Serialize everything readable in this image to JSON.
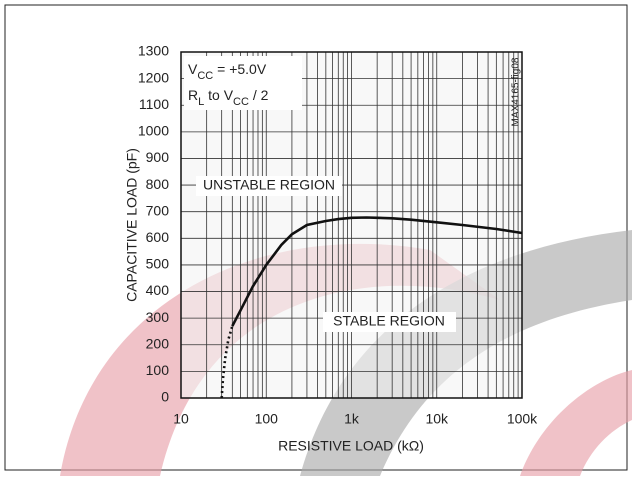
{
  "chart_data": {
    "type": "line",
    "xlabel": "RESISTIVE LOAD (kΩ)",
    "ylabel": "CAPACITIVE LOAD (pF)",
    "annotations": [
      [
        {
          "text": "V"
        },
        {
          "text": "CC",
          "sub": true
        },
        {
          "text": " = +5.0V"
        }
      ],
      [
        {
          "text": "R"
        },
        {
          "text": "L",
          "sub": true
        },
        {
          "text": " to V"
        },
        {
          "text": "CC",
          "sub": true
        },
        {
          "text": " / 2"
        }
      ]
    ],
    "region_labels": [
      "UNSTABLE REGION",
      "STABLE REGION"
    ],
    "figure_id": "MAX4165-fig08",
    "xscale": "log",
    "xlim": [
      10,
      100000
    ],
    "xticks": [
      10,
      100,
      {
        "value": 1000,
        "label": "1k"
      },
      {
        "value": 10000,
        "label": "10k"
      },
      {
        "value": 100000,
        "label": "100k"
      }
    ],
    "xminorticks": [
      20,
      30,
      40,
      50,
      60,
      70,
      80,
      90,
      200,
      300,
      400,
      500,
      600,
      700,
      800,
      900,
      2000,
      3000,
      4000,
      5000,
      6000,
      7000,
      8000,
      9000,
      20000,
      30000,
      40000,
      50000,
      60000,
      70000,
      80000,
      90000
    ],
    "ylim": [
      0,
      1300
    ],
    "yticks": [
      0,
      100,
      200,
      300,
      400,
      500,
      600,
      700,
      800,
      900,
      1000,
      1100,
      1200,
      1300
    ],
    "grid": true,
    "series": [
      {
        "color": "#111",
        "style": "solid",
        "x": [
          40,
          50,
          70,
          100,
          150,
          200,
          300,
          500,
          700,
          1000,
          1500,
          2000,
          3000,
          5000,
          10000,
          20000,
          50000,
          100000
        ],
        "values": [
          270,
          330,
          420,
          500,
          575,
          615,
          650,
          665,
          672,
          677,
          678,
          677,
          675,
          670,
          660,
          650,
          635,
          620
        ]
      },
      {
        "color": "#111",
        "style": "dotted",
        "x": [
          30,
          31,
          33,
          36,
          40
        ],
        "values": [
          0,
          70,
          150,
          220,
          270
        ]
      }
    ]
  }
}
